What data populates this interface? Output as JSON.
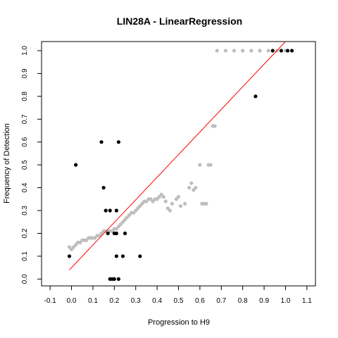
{
  "chart_data": {
    "type": "scatter",
    "title": "LIN28A - LinearRegression",
    "xlabel": "Progression to H9",
    "ylabel": "Frequency of Detection",
    "xlim": [
      -0.14,
      1.14
    ],
    "ylim": [
      -0.03,
      1.04
    ],
    "xticks": [
      "-0.1",
      "0.0",
      "0.1",
      "0.2",
      "0.3",
      "0.4",
      "0.5",
      "0.6",
      "0.7",
      "0.8",
      "0.9",
      "1.0",
      "1.1"
    ],
    "yticks": [
      "0.0",
      "0.1",
      "0.2",
      "0.3",
      "0.4",
      "0.5",
      "0.6",
      "0.7",
      "0.8",
      "0.9",
      "1.0"
    ],
    "grid": false,
    "legend": "none",
    "regression_line": {
      "x": [
        -0.01,
        1.0
      ],
      "y": [
        0.04,
        1.04
      ],
      "color": "#ff0000"
    },
    "series": [
      {
        "color": "#bebebe",
        "points": [
          [
            -0.01,
            0.14
          ],
          [
            0.0,
            0.13
          ],
          [
            0.01,
            0.14
          ],
          [
            0.02,
            0.15
          ],
          [
            0.03,
            0.16
          ],
          [
            0.04,
            0.16
          ],
          [
            0.05,
            0.17
          ],
          [
            0.06,
            0.17
          ],
          [
            0.07,
            0.17
          ],
          [
            0.08,
            0.18
          ],
          [
            0.09,
            0.18
          ],
          [
            0.1,
            0.18
          ],
          [
            0.11,
            0.18
          ],
          [
            0.12,
            0.19
          ],
          [
            0.13,
            0.19
          ],
          [
            0.14,
            0.2
          ],
          [
            0.15,
            0.21
          ],
          [
            0.16,
            0.21
          ],
          [
            0.17,
            0.21
          ],
          [
            0.18,
            0.21
          ],
          [
            0.19,
            0.21
          ],
          [
            0.2,
            0.22
          ],
          [
            0.21,
            0.22
          ],
          [
            0.22,
            0.23
          ],
          [
            0.23,
            0.24
          ],
          [
            0.24,
            0.25
          ],
          [
            0.25,
            0.26
          ],
          [
            0.26,
            0.27
          ],
          [
            0.27,
            0.28
          ],
          [
            0.28,
            0.29
          ],
          [
            0.29,
            0.29
          ],
          [
            0.3,
            0.3
          ],
          [
            0.31,
            0.31
          ],
          [
            0.32,
            0.32
          ],
          [
            0.33,
            0.33
          ],
          [
            0.34,
            0.34
          ],
          [
            0.35,
            0.34
          ],
          [
            0.36,
            0.35
          ],
          [
            0.37,
            0.35
          ],
          [
            0.38,
            0.34
          ],
          [
            0.39,
            0.35
          ],
          [
            0.4,
            0.35
          ],
          [
            0.41,
            0.36
          ],
          [
            0.42,
            0.37
          ],
          [
            0.43,
            0.36
          ],
          [
            0.44,
            0.34
          ],
          [
            0.45,
            0.31
          ],
          [
            0.46,
            0.3
          ],
          [
            0.47,
            0.33
          ],
          [
            0.49,
            0.35
          ],
          [
            0.5,
            0.36
          ],
          [
            0.51,
            0.32
          ],
          [
            0.53,
            0.33
          ],
          [
            0.55,
            0.4
          ],
          [
            0.56,
            0.42
          ],
          [
            0.57,
            0.39
          ],
          [
            0.58,
            0.4
          ],
          [
            0.6,
            0.5
          ],
          [
            0.61,
            0.33
          ],
          [
            0.62,
            0.33
          ],
          [
            0.63,
            0.33
          ],
          [
            0.64,
            0.5
          ],
          [
            0.65,
            0.5
          ],
          [
            0.66,
            0.67
          ],
          [
            0.67,
            0.67
          ],
          [
            0.68,
            1.0
          ],
          [
            0.72,
            1.0
          ],
          [
            0.76,
            1.0
          ],
          [
            0.8,
            1.0
          ],
          [
            0.84,
            1.0
          ],
          [
            0.88,
            1.0
          ],
          [
            0.92,
            1.0
          ],
          [
            0.96,
            1.0
          ],
          [
            1.0,
            1.0
          ]
        ]
      },
      {
        "color": "#000000",
        "points": [
          [
            -0.01,
            0.1
          ],
          [
            0.02,
            0.5
          ],
          [
            0.14,
            0.6
          ],
          [
            0.15,
            0.4
          ],
          [
            0.16,
            0.3
          ],
          [
            0.17,
            0.2
          ],
          [
            0.18,
            0.3
          ],
          [
            0.18,
            0.0
          ],
          [
            0.19,
            0.0
          ],
          [
            0.2,
            0.2
          ],
          [
            0.2,
            0.0
          ],
          [
            0.21,
            0.3
          ],
          [
            0.21,
            0.2
          ],
          [
            0.21,
            0.1
          ],
          [
            0.22,
            0.6
          ],
          [
            0.22,
            0.0
          ],
          [
            0.24,
            0.1
          ],
          [
            0.25,
            0.2
          ],
          [
            0.32,
            0.1
          ],
          [
            0.86,
            0.8
          ],
          [
            0.94,
            1.0
          ],
          [
            0.98,
            1.0
          ],
          [
            1.01,
            1.0
          ],
          [
            1.03,
            1.0
          ]
        ]
      }
    ]
  }
}
